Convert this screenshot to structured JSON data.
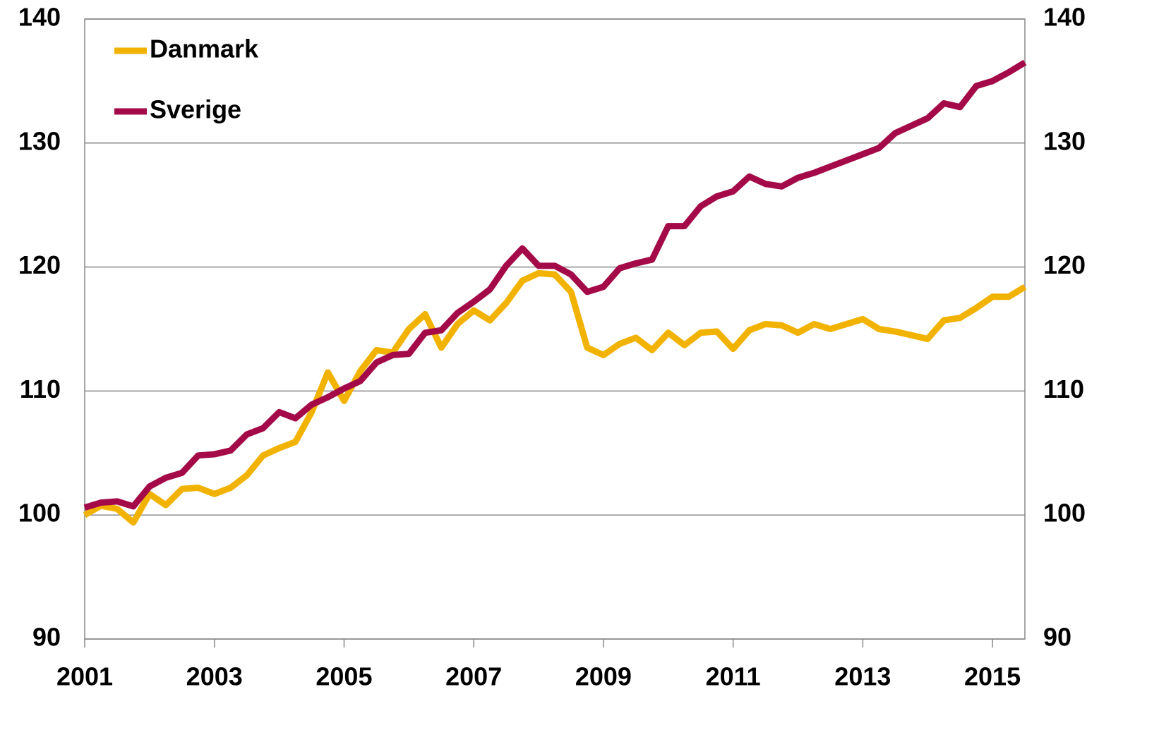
{
  "chart_data": {
    "type": "line",
    "x": [
      2001,
      2001.25,
      2001.5,
      2001.75,
      2002,
      2002.25,
      2002.5,
      2002.75,
      2003,
      2003.25,
      2003.5,
      2003.75,
      2004,
      2004.25,
      2004.5,
      2004.75,
      2005,
      2005.25,
      2005.5,
      2005.75,
      2006,
      2006.25,
      2006.5,
      2006.75,
      2007,
      2007.25,
      2007.5,
      2007.75,
      2008,
      2008.25,
      2008.5,
      2008.75,
      2009,
      2009.25,
      2009.5,
      2009.75,
      2010,
      2010.25,
      2010.5,
      2010.75,
      2011,
      2011.25,
      2011.5,
      2011.75,
      2012,
      2012.25,
      2012.5,
      2012.75,
      2013,
      2013.25,
      2013.5,
      2013.75,
      2014,
      2014.25,
      2014.5,
      2014.75,
      2015,
      2015.25,
      2015.5
    ],
    "series": [
      {
        "name": "Danmark",
        "color": "#f2b200",
        "values": [
          100,
          100.75,
          100.5,
          99.4,
          101.7,
          100.8,
          102.1,
          102.2,
          101.7,
          102.2,
          103.2,
          104.8,
          105.4,
          105.9,
          108.3,
          111.5,
          109.2,
          111.6,
          113.3,
          113.1,
          115,
          116.2,
          113.5,
          115.4,
          116.5,
          115.7,
          117.1,
          118.9,
          119.5,
          119.4,
          118,
          113.5,
          112.9,
          113.8,
          114.3,
          113.3,
          114.7,
          113.7,
          114.7,
          114.8,
          113.4,
          114.9,
          115.4,
          115.3,
          114.7,
          115.4,
          115,
          115.4,
          115.8,
          115,
          114.8,
          114.5,
          114.2,
          115.7,
          115.9,
          116.7,
          117.6,
          117.6,
          118.4
        ]
      },
      {
        "name": "Sverige",
        "color": "#a30a47",
        "values": [
          100.6,
          101,
          101.1,
          100.7,
          102.3,
          103,
          103.4,
          104.8,
          104.9,
          105.2,
          106.5,
          107,
          108.3,
          107.8,
          108.9,
          109.5,
          110.2,
          110.8,
          112.3,
          112.9,
          113,
          114.7,
          114.9,
          116.3,
          117.2,
          118.2,
          120.1,
          121.5,
          120.1,
          120.1,
          119.4,
          118,
          118.4,
          119.9,
          120.3,
          120.6,
          123.3,
          123.3,
          124.9,
          125.7,
          126.1,
          127.3,
          126.7,
          126.5,
          127.2,
          127.6,
          128.1,
          128.6,
          129.1,
          129.6,
          130.8,
          131.4,
          132,
          133.2,
          132.9,
          134.6,
          135,
          135.7,
          136.5
        ]
      }
    ],
    "xlim": [
      2001,
      2015.5
    ],
    "xticks": [
      2001,
      2003,
      2005,
      2007,
      2009,
      2011,
      2013,
      2015
    ],
    "ylim": [
      90,
      140
    ],
    "yticks": [
      90,
      100,
      110,
      120,
      130,
      140
    ],
    "y2lim": [
      90,
      140
    ],
    "y2ticks": [
      90,
      100,
      110,
      120,
      130,
      140
    ],
    "grid": true,
    "legend": "upper left"
  }
}
